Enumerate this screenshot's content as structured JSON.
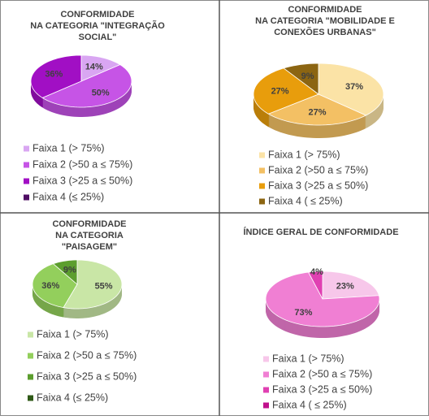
{
  "chart_data": [
    {
      "type": "pie",
      "title": [
        "CONFORMIDADE",
        "NA CATEGORIA \"INTEGRAÇÃO",
        "SOCIAL\""
      ],
      "categories": [
        "Faixa 1 (> 75%)",
        "Faixa 2 (>50 a ≤ 75%)",
        "Faixa 3 (>25 a ≤ 50%)",
        "Faixa 4 (≤ 25%)"
      ],
      "values": [
        14,
        50,
        36,
        0
      ],
      "value_labels": [
        "14%",
        "50%",
        "36%",
        null
      ],
      "colors": [
        "#d9a6f2",
        "#c654e6",
        "#a10fc4",
        "#4f0c63"
      ]
    },
    {
      "type": "pie",
      "title": [
        "CONFORMIDADE",
        "NA CATEGORIA \"MOBILIDADE E",
        "CONEXÕES URBANAS\""
      ],
      "categories": [
        "Faixa 1 (> 75%)",
        "Faixa 2 (>50 a ≤ 75%)",
        "Faixa 3 (>25 a ≤ 50%)",
        "Faixa 4 ( ≤ 25%)"
      ],
      "values": [
        37,
        27,
        27,
        9
      ],
      "value_labels": [
        "37%",
        "27%",
        "27%",
        "9%"
      ],
      "colors": [
        "#fbe3a6",
        "#f3c064",
        "#e89d0c",
        "#8c6512"
      ]
    },
    {
      "type": "pie",
      "title": [
        "CONFORMIDADE",
        "NA CATEGORIA",
        "\"PAISAGEM\""
      ],
      "categories": [
        "Faixa 1 (> 75%)",
        "Faixa 2 (>50 a ≤ 75%)",
        "Faixa 3 (>25 a ≤ 50%)",
        "Faixa 4 (≤ 25%)"
      ],
      "values": [
        55,
        36,
        9,
        0
      ],
      "value_labels": [
        "55%",
        "36%",
        "9%",
        null
      ],
      "colors": [
        "#c9e6a6",
        "#93cf5c",
        "#5c9e2e",
        "#2f5a17"
      ]
    },
    {
      "type": "pie",
      "title": [
        "ÍNDICE GERAL DE CONFORMIDADE"
      ],
      "categories": [
        "Faixa 1 (> 75%)",
        "Faixa 2 (>50 a ≤ 75%)",
        "Faixa 3 (>25 a ≤ 50%)",
        "Faixa 4 ( ≤ 25%)"
      ],
      "values": [
        23,
        73,
        4,
        0
      ],
      "value_labels": [
        "23%",
        "73%",
        "4%",
        null
      ],
      "colors": [
        "#f7c7ea",
        "#f07fd3",
        "#e040b2",
        "#c0108c"
      ]
    }
  ]
}
